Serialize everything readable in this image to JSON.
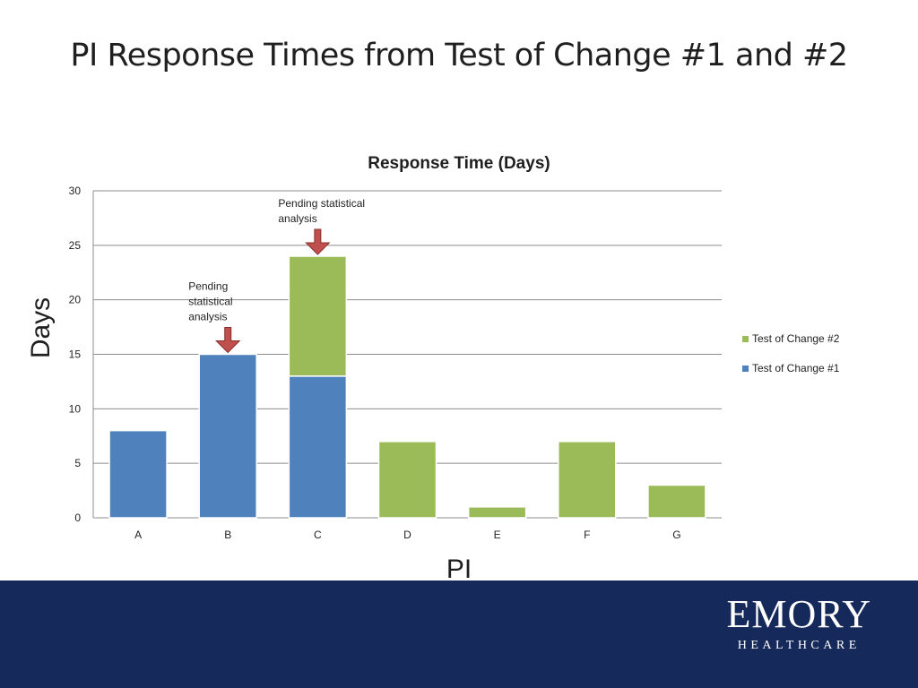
{
  "slide": {
    "title": "PI Response Times from Test of Change #1 and #2"
  },
  "logo": {
    "name": "EMORY",
    "subtitle": "HEALTHCARE"
  },
  "colors": {
    "series1": "#4f81bd",
    "series2": "#9bbb59",
    "arrow": "#c0504d",
    "footer": "#16295b"
  },
  "chart_data": {
    "type": "bar",
    "stacked": true,
    "title": "Response Time (Days)",
    "xlabel": "PI",
    "ylabel": "Days",
    "ylim": [
      0,
      30
    ],
    "yticks": [
      0,
      5,
      10,
      15,
      20,
      25,
      30
    ],
    "grid": true,
    "legend_position": "right",
    "categories": [
      "A",
      "B",
      "C",
      "D",
      "E",
      "F",
      "G"
    ],
    "series": [
      {
        "name": "Test of Change #1",
        "values": [
          8,
          15,
          13,
          0,
          0,
          0,
          0
        ],
        "color": "#4f81bd"
      },
      {
        "name": "Test of Change #2",
        "values": [
          0,
          0,
          11,
          7,
          1,
          7,
          3
        ],
        "color": "#9bbb59"
      }
    ],
    "annotations": [
      {
        "category": "B",
        "lines": [
          "Pending",
          "statistical",
          "analysis"
        ],
        "arrow": true
      },
      {
        "category": "C",
        "lines": [
          "Pending statistical",
          "analysis"
        ],
        "arrow": true
      }
    ]
  }
}
